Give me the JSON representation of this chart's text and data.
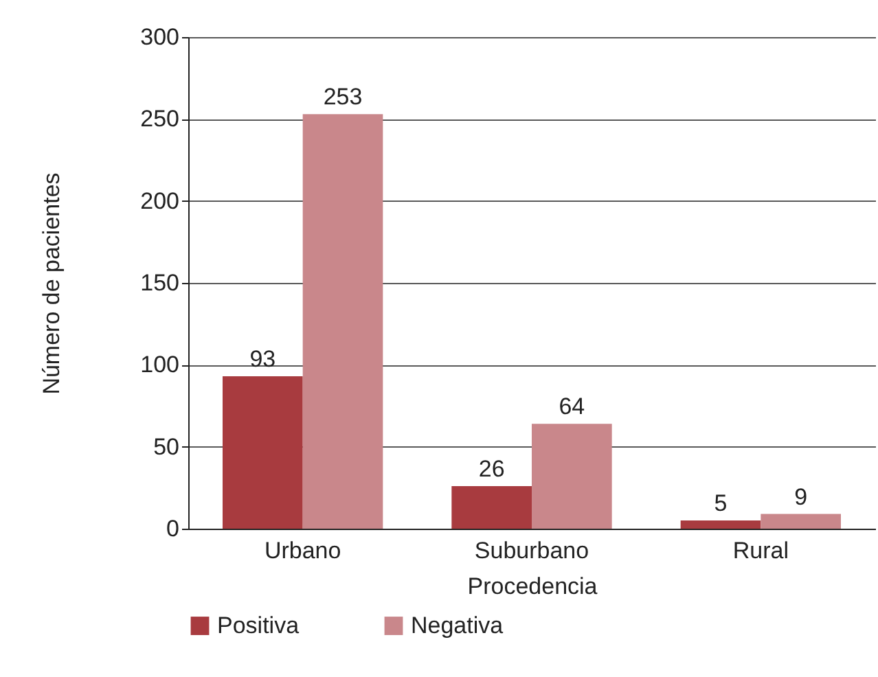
{
  "chart_data": {
    "type": "bar",
    "xlabel": "Procedencia",
    "ylabel": "Número de pacientes",
    "categories": [
      "Urbano",
      "Suburbano",
      "Rural"
    ],
    "series": [
      {
        "name": "Positiva",
        "color": "#a83b3f",
        "values": [
          93,
          26,
          5
        ]
      },
      {
        "name": "Negativa",
        "color": "#c9878b",
        "values": [
          253,
          64,
          9
        ]
      }
    ],
    "ylim": [
      0,
      300
    ],
    "yticks": [
      0,
      50,
      100,
      150,
      200,
      250,
      300
    ],
    "grid": "y",
    "legend": "bottom",
    "data_labels": true
  }
}
